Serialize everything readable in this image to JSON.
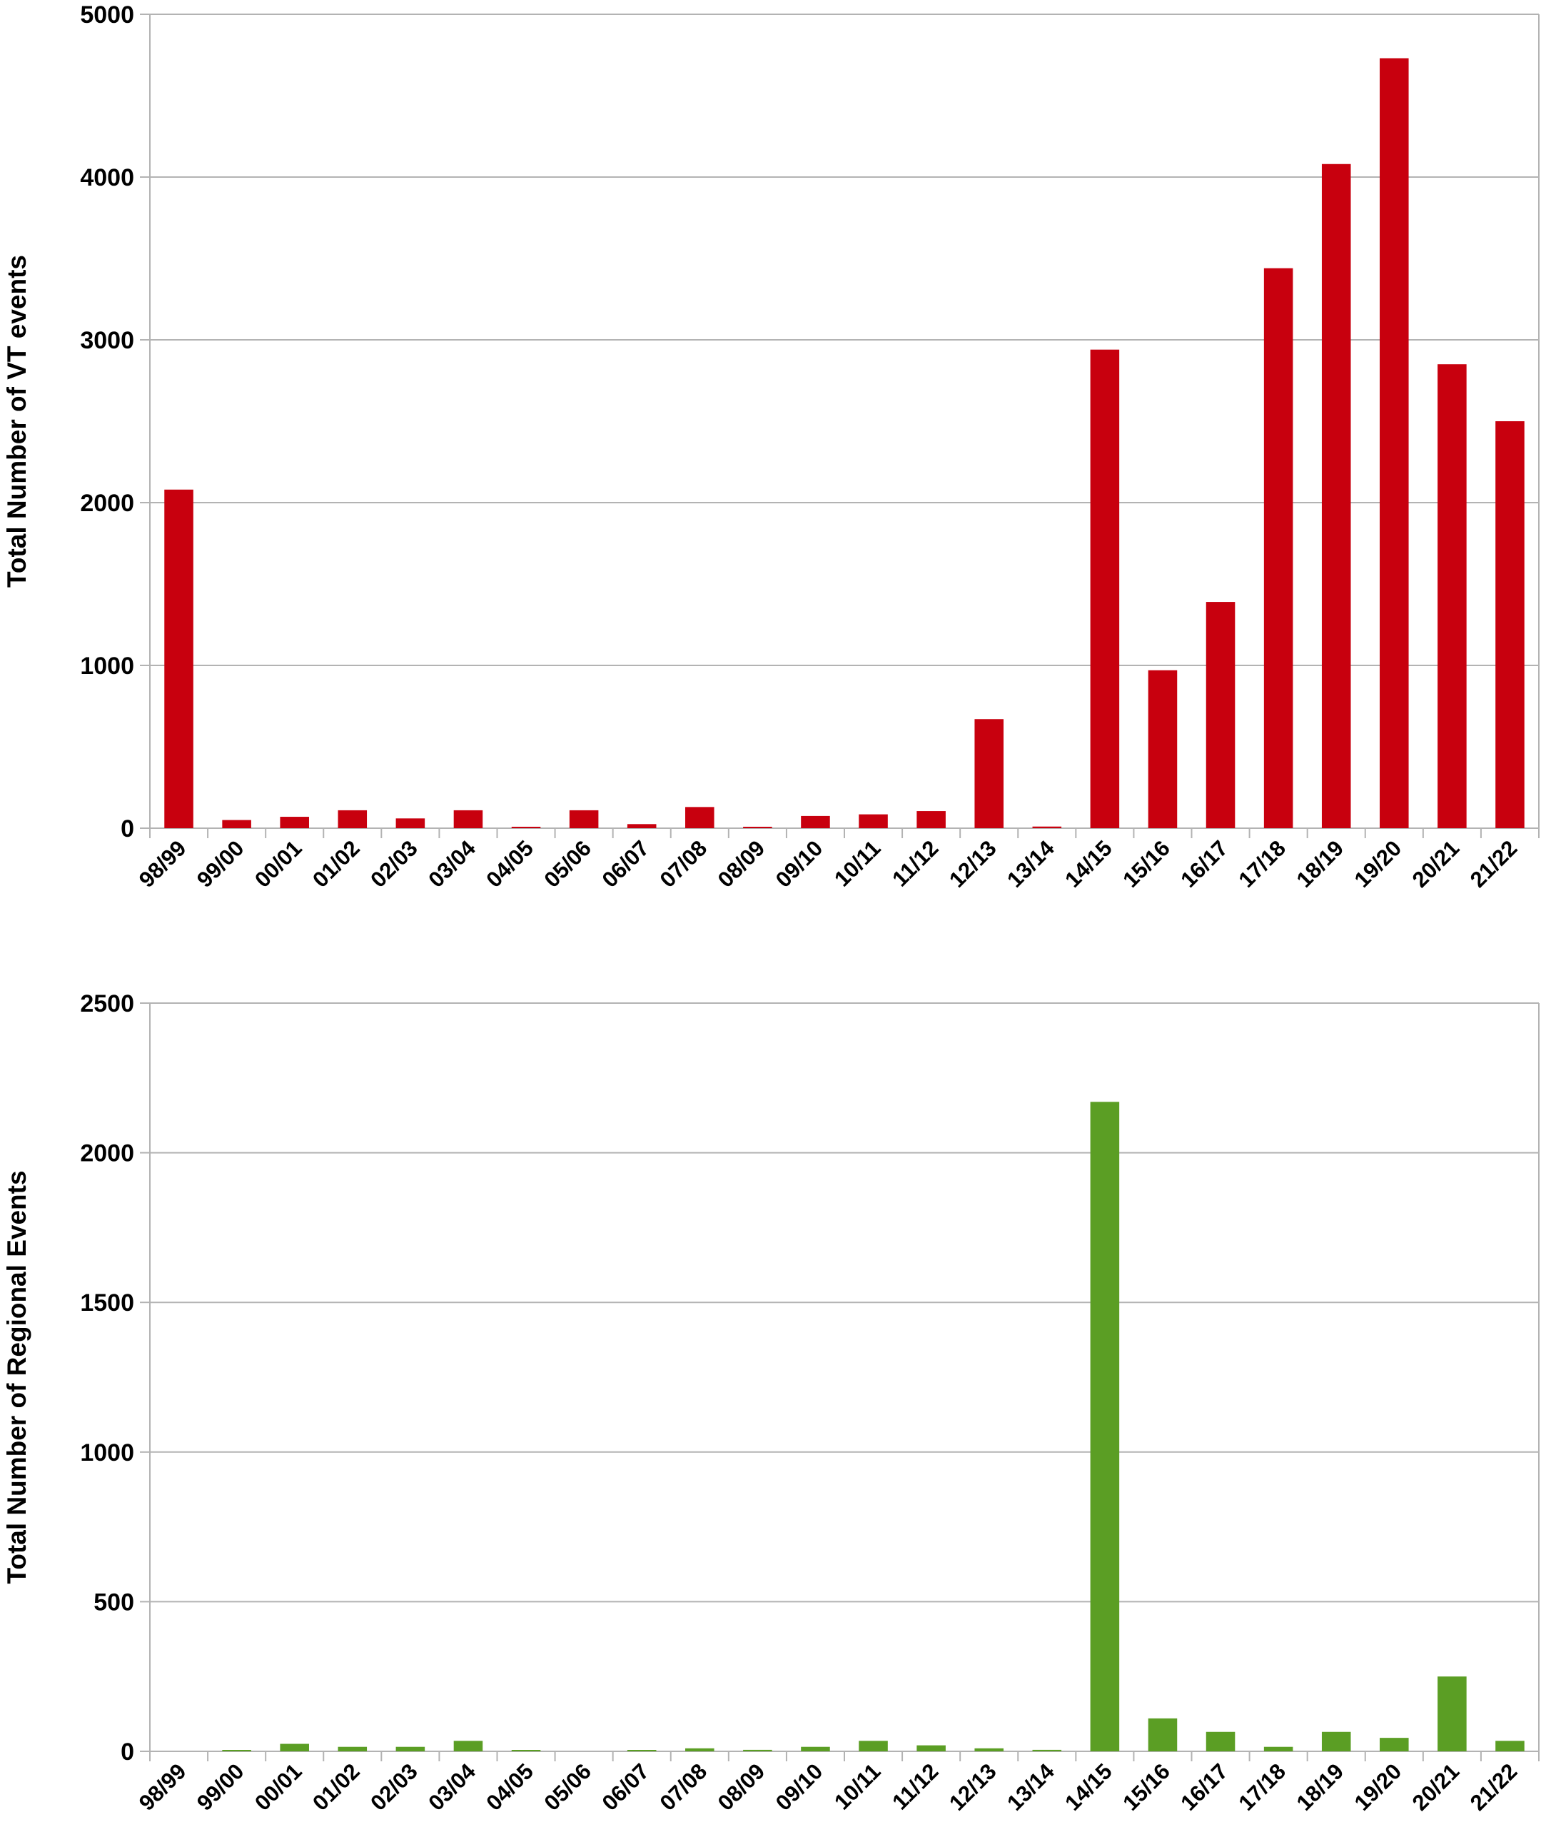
{
  "chart_data": [
    {
      "type": "bar",
      "ylabel": "Total Number of  VT events",
      "ylim": [
        0,
        5000
      ],
      "yticks": [
        0,
        1000,
        2000,
        3000,
        4000,
        5000
      ],
      "grid": true,
      "color": "#c8000e",
      "categories": [
        "98/99",
        "99/00",
        "00/01",
        "01/02",
        "02/03",
        "03/04",
        "04/05",
        "05/06",
        "06/07",
        "07/08",
        "08/09",
        "09/10",
        "10/11",
        "11/12",
        "12/13",
        "13/14",
        "14/15",
        "15/16",
        "16/17",
        "17/18",
        "18/19",
        "19/20",
        "20/21",
        "21/22"
      ],
      "values": [
        2080,
        50,
        70,
        110,
        60,
        110,
        5,
        110,
        25,
        130,
        5,
        75,
        85,
        105,
        670,
        10,
        2940,
        970,
        1390,
        3440,
        4080,
        4730,
        2850,
        2500
      ]
    },
    {
      "type": "bar",
      "ylabel": "Total Number of Regional Events",
      "ylim": [
        0,
        2500
      ],
      "yticks": [
        0,
        500,
        1000,
        1500,
        2000,
        2500
      ],
      "grid": true,
      "color": "#5b9e24",
      "categories": [
        "98/99",
        "99/00",
        "00/01",
        "01/02",
        "02/03",
        "03/04",
        "04/05",
        "05/06",
        "06/07",
        "07/08",
        "08/09",
        "09/10",
        "10/11",
        "11/12",
        "12/13",
        "13/14",
        "14/15",
        "15/16",
        "16/17",
        "17/18",
        "18/19",
        "19/20",
        "20/21",
        "21/22"
      ],
      "values": [
        0,
        3,
        25,
        15,
        15,
        35,
        3,
        0,
        3,
        10,
        5,
        15,
        35,
        20,
        10,
        5,
        2170,
        110,
        65,
        15,
        65,
        45,
        250,
        35
      ]
    }
  ]
}
